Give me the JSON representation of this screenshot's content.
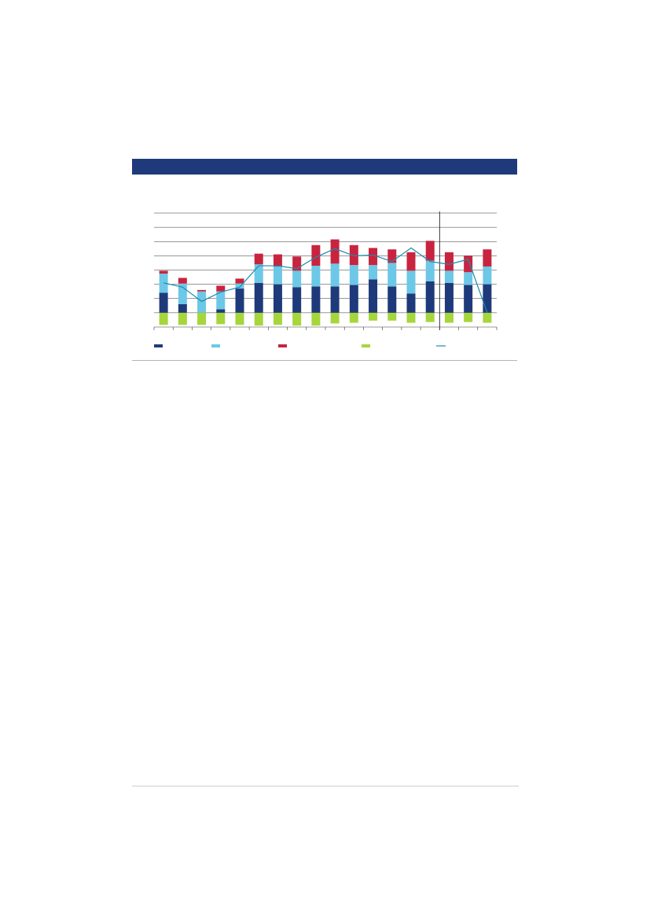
{
  "panel": {
    "header_title": ""
  },
  "colors": {
    "header": "#1f3a7a",
    "series": [
      "#1f3a7a",
      "#6cc8e6",
      "#c8243f",
      "#a6d63b"
    ],
    "line": "#1a8bb0",
    "grid": "#333333"
  },
  "chart_data": {
    "type": "bar",
    "stacked": true,
    "title": "",
    "xlabel": "",
    "ylabel": "",
    "ylim": [
      -1,
      7
    ],
    "grid": true,
    "legend": "bottom",
    "categories": [
      "",
      "",
      "",
      "",
      "",
      "",
      "",
      "",
      "",
      "",
      "",
      "",
      "",
      "",
      "",
      "",
      "",
      ""
    ],
    "forecast_divider_after_index": 14,
    "series": [
      {
        "values": [
          1.4,
          0.6,
          0.0,
          0.25,
          1.7,
          2.1,
          2.0,
          1.8,
          1.85,
          1.85,
          1.95,
          2.35,
          1.85,
          1.35,
          2.2,
          2.1,
          1.95,
          2.0
        ]
      },
      {
        "values": [
          1.35,
          1.45,
          1.5,
          1.25,
          0.35,
          1.3,
          1.25,
          1.15,
          1.45,
          1.6,
          1.4,
          1.0,
          1.65,
          1.6,
          1.45,
          0.85,
          0.9,
          1.25
        ]
      },
      {
        "values": [
          0.2,
          0.4,
          0.1,
          0.4,
          0.35,
          0.75,
          0.85,
          1.0,
          1.45,
          1.7,
          1.4,
          1.2,
          0.95,
          1.3,
          1.4,
          1.3,
          1.15,
          1.2
        ]
      },
      {
        "values": [
          -0.85,
          -0.85,
          -0.85,
          -0.8,
          -0.85,
          -0.9,
          -0.85,
          -0.9,
          -0.9,
          -0.75,
          -0.7,
          -0.55,
          -0.55,
          -0.7,
          -0.65,
          -0.7,
          -0.65,
          -0.7
        ]
      },
      {
        "type": "line",
        "values": [
          2.1,
          1.8,
          0.8,
          1.45,
          1.8,
          3.3,
          3.3,
          3.1,
          3.9,
          4.5,
          4.0,
          4.05,
          3.6,
          4.55,
          3.6,
          3.4,
          3.75,
          0
        ]
      }
    ]
  }
}
